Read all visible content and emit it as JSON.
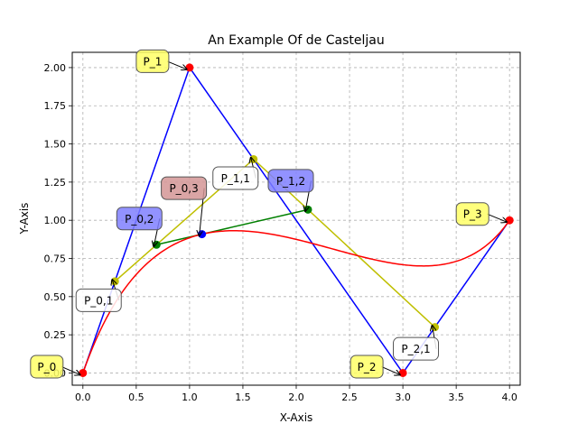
{
  "chart_data": {
    "type": "line",
    "title": "An Example Of de Casteljau",
    "xlabel": "X-Axis",
    "ylabel": "Y-Axis",
    "xlim": [
      -0.1,
      4.1
    ],
    "ylim": [
      -0.08,
      2.1
    ],
    "grid": true,
    "x_ticks": [
      "0.0",
      "0.5",
      "1.0",
      "1.5",
      "2.0",
      "2.5",
      "3.0",
      "3.5",
      "4.0"
    ],
    "y_ticks": [
      "0.00",
      "0.25",
      "0.50",
      "0.75",
      "1.00",
      "1.25",
      "1.50",
      "1.75",
      "2.00"
    ],
    "control_points": [
      {
        "label": "P_0",
        "x": 0.0,
        "y": 0.0
      },
      {
        "label": "P_1",
        "x": 1.0,
        "y": 2.0
      },
      {
        "label": "P_2",
        "x": 3.0,
        "y": 0.0
      },
      {
        "label": "P_3",
        "x": 4.0,
        "y": 1.0
      }
    ],
    "level1_points": [
      {
        "label": "P_0,1",
        "x": 0.3,
        "y": 0.6
      },
      {
        "label": "P_1,1",
        "x": 1.6,
        "y": 1.4
      },
      {
        "label": "P_2,1",
        "x": 3.3,
        "y": 0.3
      }
    ],
    "level2_points": [
      {
        "label": "P_0,2",
        "x": 0.69,
        "y": 0.84
      },
      {
        "label": "P_1,2",
        "x": 2.11,
        "y": 1.07
      }
    ],
    "level3_points": [
      {
        "label": "P_0,3",
        "x": 1.116,
        "y": 0.909
      }
    ],
    "t": 0.3,
    "colors": {
      "control_polygon": "#0000ff",
      "level1": "#bfbf00",
      "level2": "#008000",
      "curve": "#ff0000",
      "control_point": "#ff0000",
      "level3_point": "#0000ff",
      "label_yellow": "#ffff66",
      "label_white": "#ffffff",
      "label_blue": "#7f7fff",
      "label_red": "#d49595"
    }
  }
}
